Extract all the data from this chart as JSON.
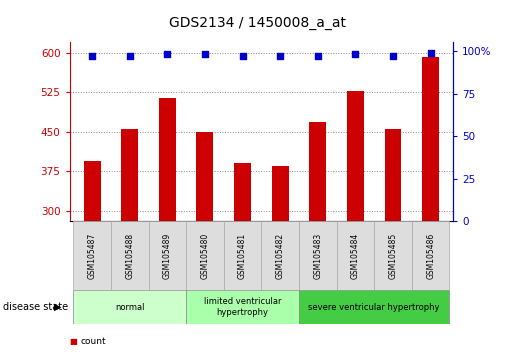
{
  "title": "GDS2134 / 1450008_a_at",
  "categories": [
    "GSM105487",
    "GSM105488",
    "GSM105489",
    "GSM105480",
    "GSM105481",
    "GSM105482",
    "GSM105483",
    "GSM105484",
    "GSM105485",
    "GSM105486"
  ],
  "bar_values": [
    395,
    455,
    515,
    450,
    390,
    385,
    468,
    528,
    455,
    592
  ],
  "percentile_values": [
    97,
    97,
    98,
    98,
    97,
    97,
    97,
    98,
    97,
    99
  ],
  "bar_color": "#cc0000",
  "dot_color": "#0000cc",
  "ylim_left": [
    280,
    620
  ],
  "ylim_right": [
    0,
    105
  ],
  "yticks_left": [
    300,
    375,
    450,
    525,
    600
  ],
  "yticks_right": [
    0,
    25,
    50,
    75,
    100
  ],
  "disease_groups": [
    {
      "label": "normal",
      "start": 0,
      "end": 3,
      "color": "#ccffcc"
    },
    {
      "label": "limited ventricular\nhypertrophy",
      "start": 3,
      "end": 6,
      "color": "#aaffaa"
    },
    {
      "label": "severe ventricular hypertrophy",
      "start": 6,
      "end": 10,
      "color": "#44cc44"
    }
  ],
  "disease_state_label": "disease state",
  "grid_color": "#888888",
  "background_color": "#ffffff",
  "title_fontsize": 10,
  "tick_fontsize": 7.5,
  "cat_fontsize": 5.5,
  "legend_fontsize": 7,
  "group_fontsize": 6
}
